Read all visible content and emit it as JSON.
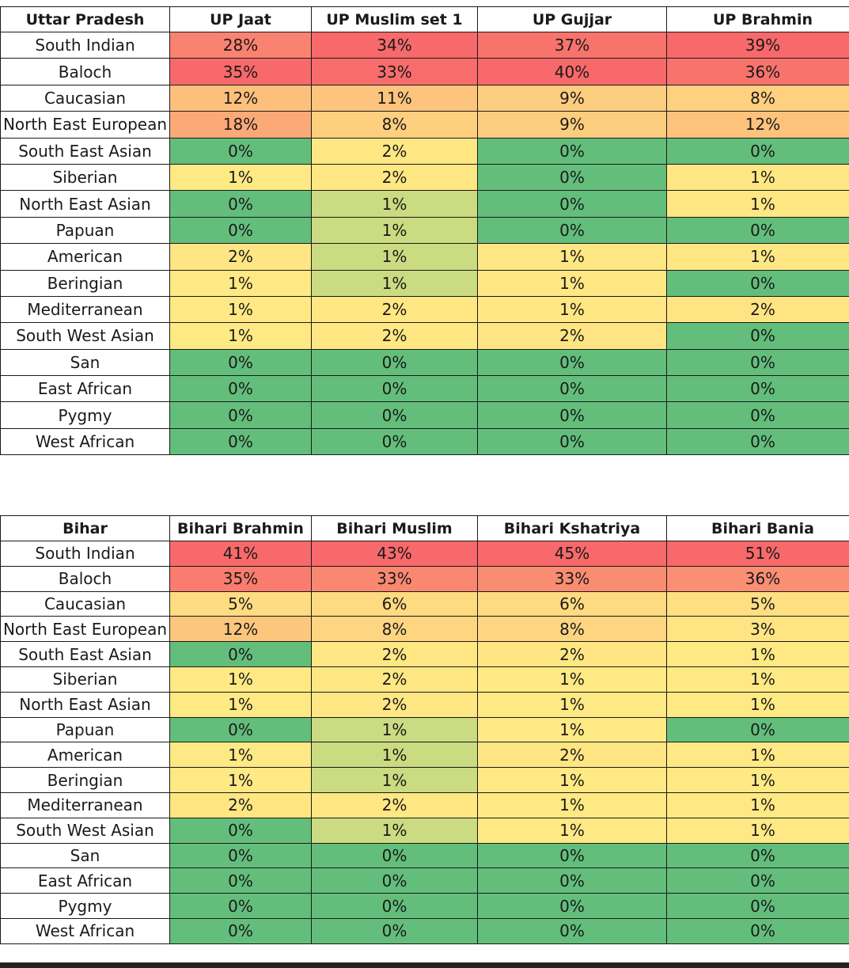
{
  "tables": [
    {
      "id": "up",
      "headers": [
        "Uttar Pradesh",
        "UP Jaat",
        "UP Muslim set 1",
        "UP Gujjar",
        "UP Brahmin"
      ],
      "rows": [
        {
          "label": "South Indian",
          "values": [
            28,
            34,
            37,
            39
          ]
        },
        {
          "label": "Baloch",
          "values": [
            35,
            33,
            40,
            36
          ]
        },
        {
          "label": "Caucasian",
          "values": [
            12,
            11,
            9,
            8
          ]
        },
        {
          "label": "North East European",
          "values": [
            18,
            8,
            9,
            12
          ]
        },
        {
          "label": "South East Asian",
          "values": [
            0,
            2,
            0,
            0
          ]
        },
        {
          "label": "Siberian",
          "values": [
            1,
            2,
            0,
            1
          ]
        },
        {
          "label": "North East Asian",
          "values": [
            0,
            1,
            0,
            1
          ]
        },
        {
          "label": "Papuan",
          "values": [
            0,
            1,
            0,
            0
          ]
        },
        {
          "label": "American",
          "values": [
            2,
            1,
            1,
            1
          ]
        },
        {
          "label": "Beringian",
          "values": [
            1,
            1,
            1,
            0
          ]
        },
        {
          "label": "Mediterranean",
          "values": [
            1,
            2,
            1,
            2
          ]
        },
        {
          "label": "South West Asian",
          "values": [
            1,
            2,
            2,
            0
          ]
        },
        {
          "label": "San",
          "values": [
            0,
            0,
            0,
            0
          ]
        },
        {
          "label": "East African",
          "values": [
            0,
            0,
            0,
            0
          ]
        },
        {
          "label": "Pygmy",
          "values": [
            0,
            0,
            0,
            0
          ]
        },
        {
          "label": "West African",
          "values": [
            0,
            0,
            0,
            0
          ]
        }
      ]
    },
    {
      "id": "bihar",
      "headers": [
        "Bihar",
        "Bihari Brahmin",
        "Bihari Muslim",
        "Bihari Kshatriya",
        "Bihari Bania"
      ],
      "rows": [
        {
          "label": "South Indian",
          "values": [
            41,
            43,
            45,
            51
          ]
        },
        {
          "label": "Baloch",
          "values": [
            35,
            33,
            33,
            36
          ]
        },
        {
          "label": "Caucasian",
          "values": [
            5,
            6,
            6,
            5
          ]
        },
        {
          "label": "North East European",
          "values": [
            12,
            8,
            8,
            3
          ]
        },
        {
          "label": "South East Asian",
          "values": [
            0,
            2,
            2,
            1
          ]
        },
        {
          "label": "Siberian",
          "values": [
            1,
            2,
            1,
            1
          ]
        },
        {
          "label": "North East Asian",
          "values": [
            1,
            2,
            1,
            1
          ]
        },
        {
          "label": "Papuan",
          "values": [
            0,
            1,
            1,
            0
          ]
        },
        {
          "label": "American",
          "values": [
            1,
            1,
            2,
            1
          ]
        },
        {
          "label": "Beringian",
          "values": [
            1,
            1,
            1,
            1
          ]
        },
        {
          "label": "Mediterranean",
          "values": [
            2,
            2,
            1,
            1
          ]
        },
        {
          "label": "South West Asian",
          "values": [
            0,
            1,
            1,
            1
          ]
        },
        {
          "label": "San",
          "values": [
            0,
            0,
            0,
            0
          ]
        },
        {
          "label": "East African",
          "values": [
            0,
            0,
            0,
            0
          ]
        },
        {
          "label": "Pygmy",
          "values": [
            0,
            0,
            0,
            0
          ]
        },
        {
          "label": "West African",
          "values": [
            0,
            0,
            0,
            0
          ]
        }
      ]
    }
  ],
  "value_suffix": "%",
  "color_scale": {
    "low": "#63be7b",
    "mid": "#ffe984",
    "high": "#f8696b"
  }
}
